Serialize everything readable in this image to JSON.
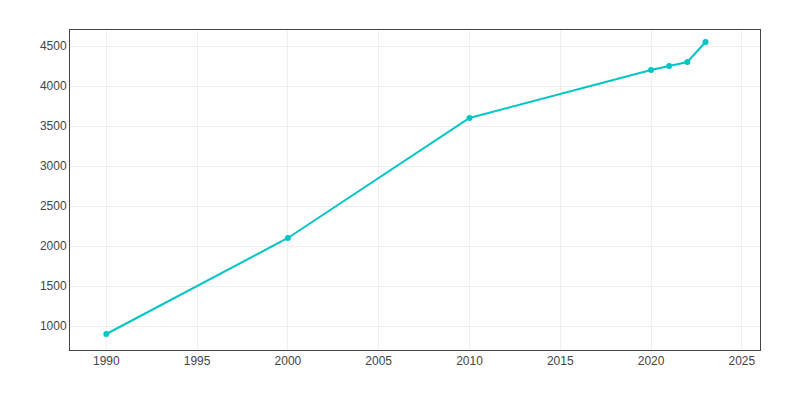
{
  "chart_data": {
    "type": "line",
    "x": [
      1990,
      2000,
      2010,
      2020,
      2021,
      2022,
      2023
    ],
    "values": [
      900,
      2100,
      3600,
      4200,
      4250,
      4300,
      4550
    ],
    "color": "#00C5C5",
    "marker": "circle",
    "line_style": "solid",
    "xlim": [
      1988,
      2026
    ],
    "ylim": [
      700,
      4700
    ],
    "xticks": [
      1990,
      1995,
      2000,
      2005,
      2010,
      2015,
      2020,
      2025
    ],
    "yticks": [
      1000,
      1500,
      2000,
      2500,
      3000,
      3500,
      4000,
      4500
    ],
    "grid": true
  }
}
